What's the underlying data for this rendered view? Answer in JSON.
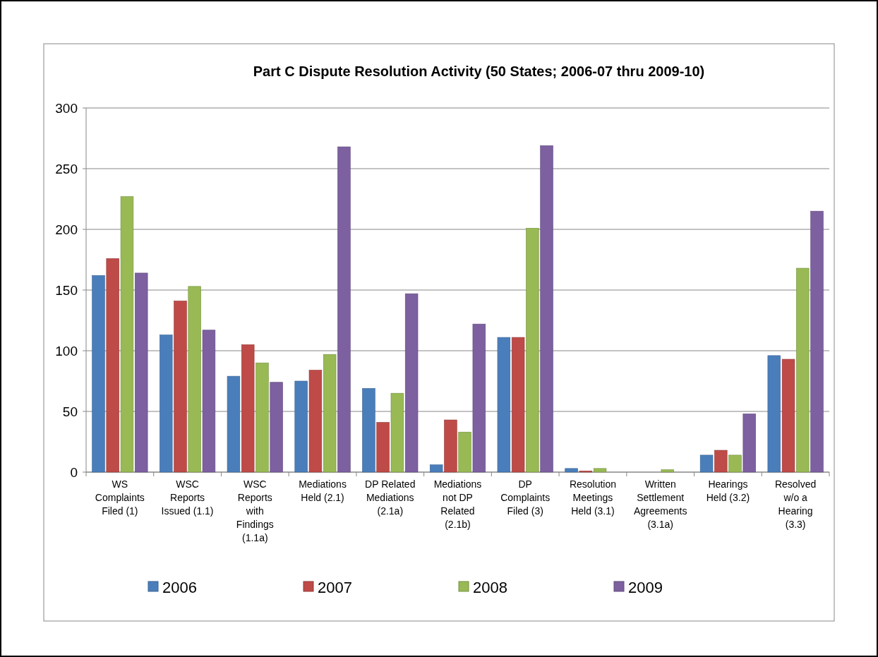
{
  "chart_data": {
    "type": "bar",
    "title": "Part C  Dispute Resolution Activity (50 States;  2006-07 thru 2009-10)",
    "categories": [
      "WS\nComplaints\nFiled (1)",
      "WSC\nReports\nIssued (1.1)",
      "WSC\nReports\nwith\nFindings\n(1.1a)",
      "Mediations\nHeld (2.1)",
      "DP Related\nMediations\n(2.1a)",
      "Mediations\nnot DP\nRelated\n(2.1b)",
      "DP\nComplaints\nFiled (3)",
      "Resolution\nMeetings\nHeld (3.1)",
      "Written\nSettlement\nAgreements\n(3.1a)",
      "Hearings\nHeld (3.2)",
      "Resolved\nw/o a\nHearing\n(3.3)"
    ],
    "series": [
      {
        "name": "2006",
        "color": "#4a7ebb",
        "values": [
          162,
          113,
          79,
          75,
          69,
          6,
          111,
          3,
          0,
          14,
          96
        ]
      },
      {
        "name": "2007",
        "color": "#be4b48",
        "values": [
          176,
          141,
          105,
          84,
          41,
          43,
          111,
          1,
          0,
          18,
          93
        ]
      },
      {
        "name": "2008",
        "color": "#98b954",
        "values": [
          227,
          153,
          90,
          97,
          65,
          33,
          201,
          3,
          2,
          14,
          168
        ]
      },
      {
        "name": "2009",
        "color": "#7d60a0",
        "values": [
          164,
          117,
          74,
          268,
          147,
          122,
          269,
          0,
          0,
          48,
          215
        ]
      }
    ],
    "ylim": [
      0,
      300
    ],
    "yticks": [
      0,
      50,
      100,
      150,
      200,
      250,
      300
    ],
    "grid": "y",
    "legend": "bottom"
  }
}
